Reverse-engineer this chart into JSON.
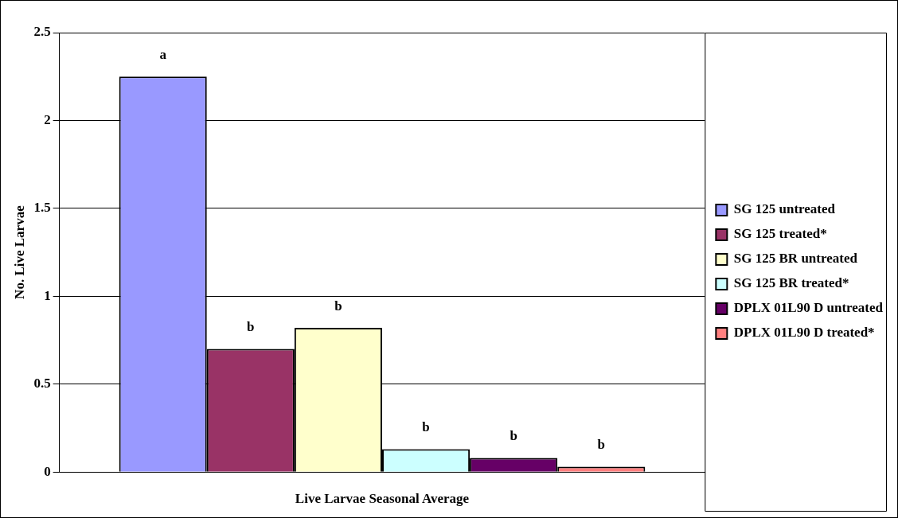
{
  "chart_data": {
    "type": "bar",
    "xlabel": "Live Larvae Seasonal Average",
    "ylabel": "No. Live Larvae",
    "categories": [
      null
    ],
    "series": [
      {
        "name": "SG 125 untreated",
        "color": "#9999ff",
        "values": [
          2.25
        ],
        "value_labels": [
          "a"
        ]
      },
      {
        "name": "SG 125 treated*",
        "color": "#993366",
        "values": [
          0.7
        ],
        "value_labels": [
          "b"
        ]
      },
      {
        "name": "SG 125 BR untreated",
        "color": "#ffffcc",
        "values": [
          0.82
        ],
        "value_labels": [
          "b"
        ]
      },
      {
        "name": "SG 125 BR treated*",
        "color": "#ccffff",
        "values": [
          0.13
        ],
        "value_labels": [
          "b"
        ]
      },
      {
        "name": "DPLX 01L90 D untreated",
        "color": "#660066",
        "values": [
          0.08
        ],
        "value_labels": [
          "b"
        ]
      },
      {
        "name": "DPLX 01L90 D treated*",
        "color": "#ff8080",
        "values": [
          0.03
        ],
        "value_labels": [
          "b"
        ]
      }
    ],
    "ylim": [
      0,
      2.5
    ],
    "yticks": [
      0,
      0.5,
      1,
      1.5,
      2,
      2.5
    ],
    "grid": "y",
    "legend": "right"
  }
}
